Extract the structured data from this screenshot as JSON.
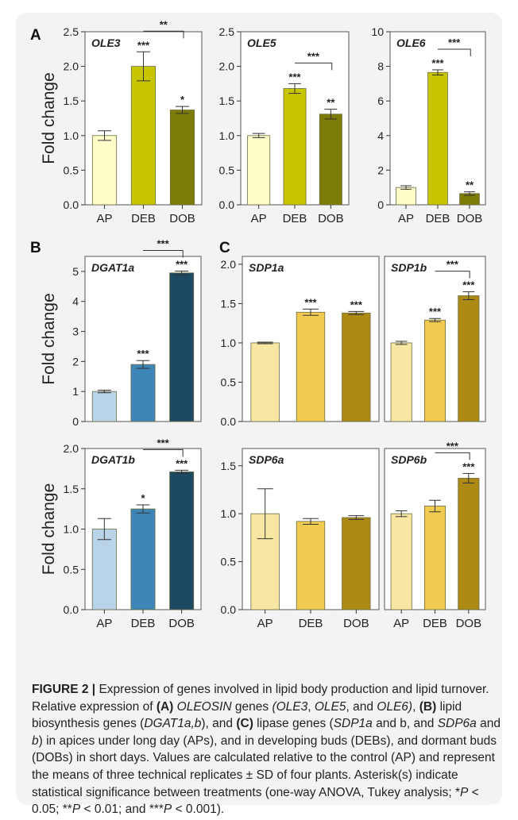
{
  "panel_letters": [
    "A",
    "B",
    "C"
  ],
  "caption": {
    "figure_label": "FIGURE 2 |",
    "text_html": "Expression of genes involved in lipid body production and lipid turnover. Relative expression of <b>(A)</b> <i>OLEOSIN</i> genes <i>(OLE3</i>, <i>OLE5</i>, and <i>OLE6)</i>, <b>(B)</b> lipid biosynthesis genes (<i>DGAT1a,b</i>), and <b>(C)</b> lipase genes (<i>SDP1a</i> and b, and <i>SDP6a</i> and <i>b</i>) in apices under long day (APs), and in developing buds (DEBs), and dormant buds (DOBs) in short days. Values are calculated relative to the control (AP) and represent the means of three technical replicates ± SD of four plants. Asterisk(s) indicate statistical significance between treatments (one-way ANOVA, Tukey analysis; *<i>P</i> &lt; 0.05; **<i>P</i> &lt; 0.01; and ***<i>P</i> &lt; 0.001)."
  },
  "chart_data": [
    {
      "type": "bar",
      "title": "OLE3",
      "ylabel": "Fold change",
      "categories": [
        "AP",
        "DEB",
        "DOB"
      ],
      "values": [
        1.0,
        2.0,
        1.37
      ],
      "errors": [
        0.07,
        0.21,
        0.05
      ],
      "ylim": [
        0,
        2.5
      ],
      "yticks": [
        "0.0",
        "0.5",
        "1.0",
        "1.5",
        "2.0",
        "2.5"
      ],
      "colors": [
        "#fdfdc9",
        "#c7c400",
        "#7d7c08"
      ],
      "bar_labels": [
        "",
        "***",
        "*"
      ],
      "brackets": [
        {
          "from": 1,
          "to": 2,
          "label": "**"
        }
      ]
    },
    {
      "type": "bar",
      "title": "OLE5",
      "ylabel": "",
      "categories": [
        "AP",
        "DEB",
        "DOB"
      ],
      "values": [
        1.0,
        1.68,
        1.31
      ],
      "errors": [
        0.03,
        0.07,
        0.07
      ],
      "ylim": [
        0,
        2.5
      ],
      "yticks": [
        "0.0",
        "0.5",
        "1.0",
        "1.5",
        "2.0",
        "2.5"
      ],
      "colors": [
        "#fdfdc9",
        "#c7c400",
        "#7d7c08"
      ],
      "bar_labels": [
        "",
        "***",
        "**"
      ],
      "brackets": [
        {
          "from": 1,
          "to": 2,
          "label": "***"
        }
      ]
    },
    {
      "type": "bar",
      "title": "OLE6",
      "ylabel": "",
      "categories": [
        "AP",
        "DEB",
        "DOB"
      ],
      "values": [
        1.0,
        7.65,
        0.65
      ],
      "errors": [
        0.1,
        0.15,
        0.1
      ],
      "ylim": [
        0,
        10
      ],
      "yticks": [
        "0",
        "2",
        "4",
        "6",
        "8",
        "10"
      ],
      "colors": [
        "#fdfdc9",
        "#c7c400",
        "#7d7c08"
      ],
      "bar_labels": [
        "",
        "***",
        "**"
      ],
      "brackets": [
        {
          "from": 1,
          "to": 2,
          "label": "***"
        }
      ]
    },
    {
      "type": "bar",
      "title": "DGAT1a",
      "ylabel": "Fold change",
      "categories": [
        "",
        "",
        ""
      ],
      "values": [
        1.0,
        1.9,
        4.95
      ],
      "errors": [
        0.04,
        0.13,
        0.06
      ],
      "ylim": [
        0,
        5.5
      ],
      "yticks": [
        "0",
        "1",
        "2",
        "3",
        "4",
        "5"
      ],
      "colors": [
        "#b9d3e8",
        "#3f86b8",
        "#1d4962"
      ],
      "bar_labels": [
        "",
        "***",
        "***"
      ],
      "brackets": [
        {
          "from": 1,
          "to": 2,
          "label": "***"
        }
      ]
    },
    {
      "type": "bar",
      "title": "DGAT1b",
      "ylabel": "Fold change",
      "categories": [
        "AP",
        "DEB",
        "DOB"
      ],
      "values": [
        1.0,
        1.25,
        1.71
      ],
      "errors": [
        0.13,
        0.05,
        0.02
      ],
      "ylim": [
        0,
        2.0
      ],
      "yticks": [
        "0.0",
        "0.5",
        "1.0",
        "1.5",
        "2.0"
      ],
      "colors": [
        "#b9d3e8",
        "#3f86b8",
        "#1d4962"
      ],
      "bar_labels": [
        "",
        "*",
        "***"
      ],
      "brackets": [
        {
          "from": 1,
          "to": 2,
          "label": "***"
        }
      ]
    },
    {
      "type": "bar",
      "title": "SDP1a",
      "ylabel": "",
      "categories": [
        "",
        "",
        ""
      ],
      "values": [
        1.0,
        1.39,
        1.38
      ],
      "errors": [
        0.01,
        0.04,
        0.02
      ],
      "ylim": [
        0,
        2.1
      ],
      "yticks": [
        "0.0",
        "0.5",
        "1.0",
        "1.5",
        "2.0"
      ],
      "colors": [
        "#f7e7a3",
        "#f1cb4f",
        "#ad8a14"
      ],
      "bar_labels": [
        "",
        "***",
        "***"
      ],
      "brackets": []
    },
    {
      "type": "bar",
      "title": "SDP1b",
      "ylabel": "",
      "categories": [
        "",
        "",
        ""
      ],
      "values": [
        1.0,
        1.29,
        1.6
      ],
      "errors": [
        0.02,
        0.02,
        0.05
      ],
      "ylim": [
        0,
        2.1
      ],
      "yticks": [],
      "colors": [
        "#f7e7a3",
        "#f1cb4f",
        "#ad8a14"
      ],
      "bar_labels": [
        "",
        "***",
        "***"
      ],
      "brackets": [
        {
          "from": 1,
          "to": 2,
          "label": "***"
        }
      ]
    },
    {
      "type": "bar",
      "title": "SDP6a",
      "ylabel": "",
      "categories": [
        "AP",
        "DEB",
        "DOB"
      ],
      "values": [
        1.0,
        0.92,
        0.96
      ],
      "errors": [
        0.26,
        0.03,
        0.02
      ],
      "ylim": [
        0,
        1.68
      ],
      "yticks": [
        "0.0",
        "0.5",
        "1.0",
        "1.5"
      ],
      "colors": [
        "#f7e7a3",
        "#f1cb4f",
        "#ad8a14"
      ],
      "bar_labels": [
        "",
        "",
        ""
      ],
      "brackets": []
    },
    {
      "type": "bar",
      "title": "SDP6b",
      "ylabel": "",
      "categories": [
        "AP",
        "DEB",
        "DOB"
      ],
      "values": [
        1.0,
        1.08,
        1.37
      ],
      "errors": [
        0.03,
        0.06,
        0.05
      ],
      "ylim": [
        0,
        1.68
      ],
      "yticks": [],
      "colors": [
        "#f7e7a3",
        "#f1cb4f",
        "#ad8a14"
      ],
      "bar_labels": [
        "",
        "",
        "***"
      ],
      "brackets": [
        {
          "from": 1,
          "to": 2,
          "label": "***"
        }
      ]
    }
  ]
}
